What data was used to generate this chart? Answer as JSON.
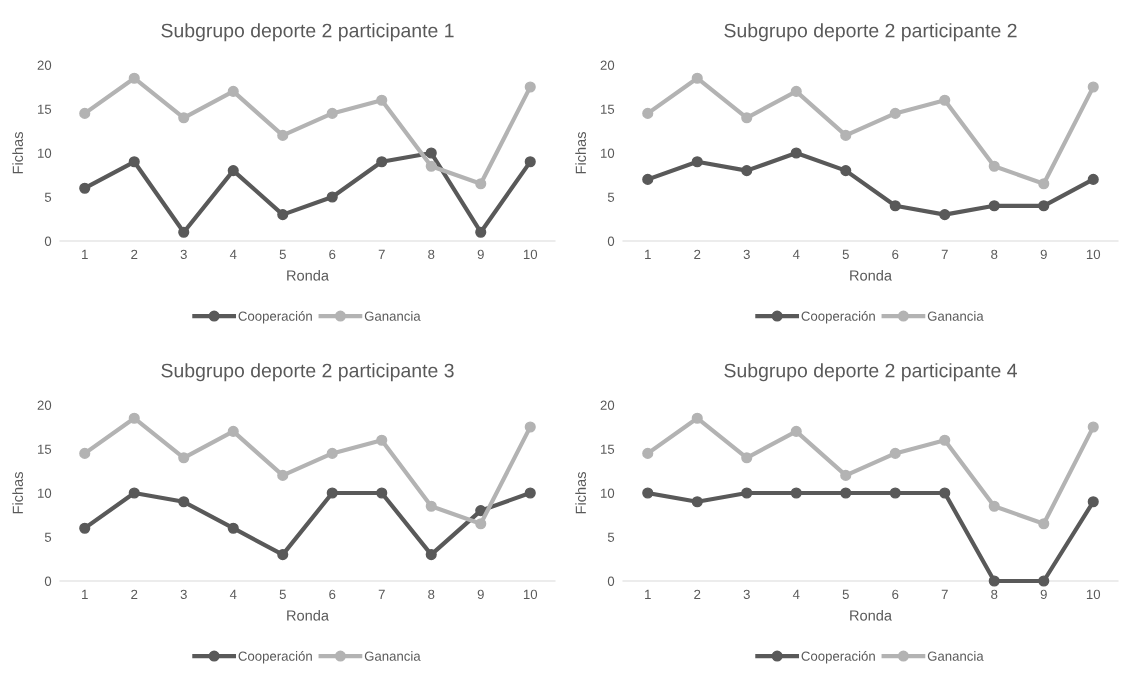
{
  "chart_data": [
    {
      "type": "line",
      "title": "Subgrupo deporte 2 participante 1",
      "xlabel": "Ronda",
      "ylabel": "Fichas",
      "categories": [
        "1",
        "2",
        "3",
        "4",
        "5",
        "6",
        "7",
        "8",
        "9",
        "10"
      ],
      "ylim": [
        0,
        20
      ],
      "yticks": [
        0,
        5,
        10,
        15,
        20
      ],
      "grid": false,
      "legend": "bottom",
      "marker": "circle",
      "series": [
        {
          "name": "Cooperación",
          "color": "#595959",
          "values": [
            6,
            9,
            1,
            8,
            3,
            5,
            9,
            10,
            1,
            9
          ]
        },
        {
          "name": "Ganancia",
          "color": "#b3b3b3",
          "values": [
            14.5,
            18.5,
            14,
            17,
            12,
            14.5,
            16,
            8.5,
            6.5,
            17.5
          ]
        }
      ]
    },
    {
      "type": "line",
      "title": "Subgrupo deporte 2 participante 2",
      "xlabel": "Ronda",
      "ylabel": "Fichas",
      "categories": [
        "1",
        "2",
        "3",
        "4",
        "5",
        "6",
        "7",
        "8",
        "9",
        "10"
      ],
      "ylim": [
        0,
        20
      ],
      "yticks": [
        0,
        5,
        10,
        15,
        20
      ],
      "grid": false,
      "legend": "bottom",
      "marker": "circle",
      "series": [
        {
          "name": "Cooperación",
          "color": "#595959",
          "values": [
            7,
            9,
            8,
            10,
            8,
            4,
            3,
            4,
            4,
            7
          ]
        },
        {
          "name": "Ganancia",
          "color": "#b3b3b3",
          "values": [
            14.5,
            18.5,
            14,
            17,
            12,
            14.5,
            16,
            8.5,
            6.5,
            17.5
          ]
        }
      ]
    },
    {
      "type": "line",
      "title": "Subgrupo deporte 2 participante 3",
      "xlabel": "Ronda",
      "ylabel": "Fichas",
      "categories": [
        "1",
        "2",
        "3",
        "4",
        "5",
        "6",
        "7",
        "8",
        "9",
        "10"
      ],
      "ylim": [
        0,
        20
      ],
      "yticks": [
        0,
        5,
        10,
        15,
        20
      ],
      "grid": false,
      "legend": "bottom",
      "marker": "circle",
      "series": [
        {
          "name": "Cooperación",
          "color": "#595959",
          "values": [
            6,
            10,
            9,
            6,
            3,
            10,
            10,
            3,
            8,
            10
          ]
        },
        {
          "name": "Ganancia",
          "color": "#b3b3b3",
          "values": [
            14.5,
            18.5,
            14,
            17,
            12,
            14.5,
            16,
            8.5,
            6.5,
            17.5
          ]
        }
      ]
    },
    {
      "type": "line",
      "title": "Subgrupo deporte 2 participante 4",
      "xlabel": "Ronda",
      "ylabel": "Fichas",
      "categories": [
        "1",
        "2",
        "3",
        "4",
        "5",
        "6",
        "7",
        "8",
        "9",
        "10"
      ],
      "ylim": [
        0,
        20
      ],
      "yticks": [
        0,
        5,
        10,
        15,
        20
      ],
      "grid": false,
      "legend": "bottom",
      "marker": "circle",
      "series": [
        {
          "name": "Cooperación",
          "color": "#595959",
          "values": [
            10,
            9,
            10,
            10,
            10,
            10,
            10,
            0,
            0,
            9
          ]
        },
        {
          "name": "Ganancia",
          "color": "#b3b3b3",
          "values": [
            14.5,
            18.5,
            14,
            17,
            12,
            14.5,
            16,
            8.5,
            6.5,
            17.5
          ]
        }
      ]
    }
  ]
}
